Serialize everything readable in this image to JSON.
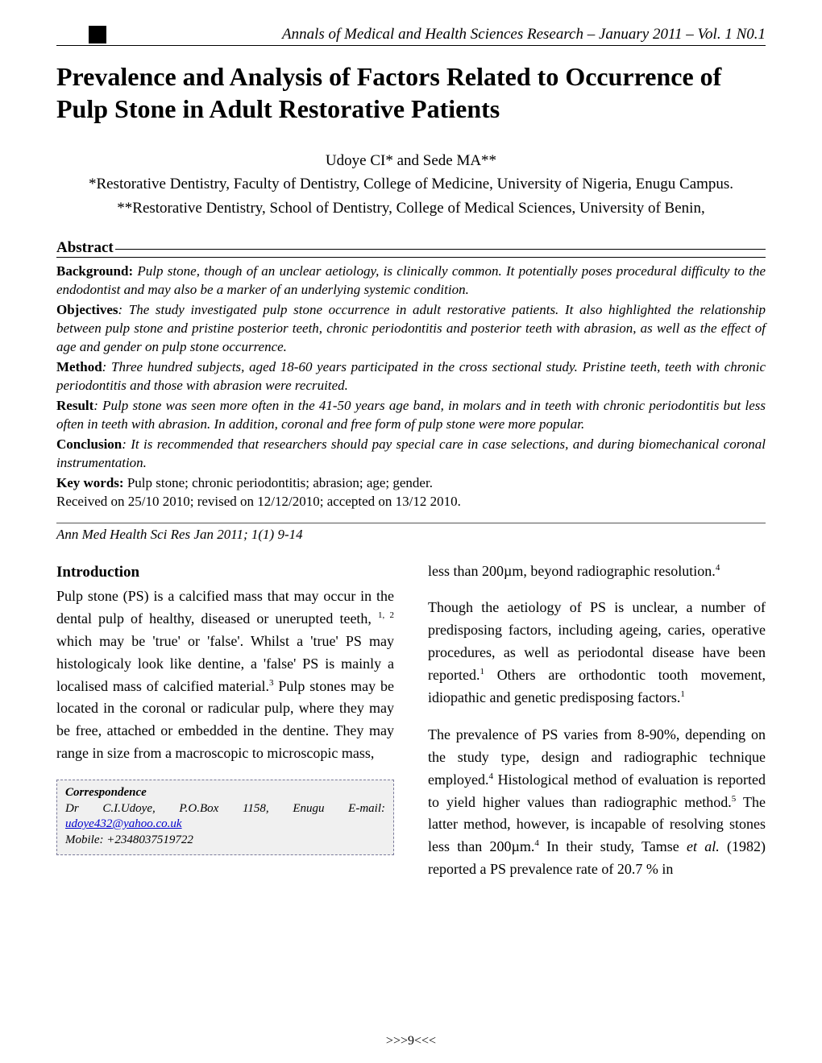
{
  "journal_header": "Annals of Medical and Health Sciences Research – January 2011 – Vol. 1 N0.1",
  "title": "Prevalence and Analysis of Factors Related to Occurrence of Pulp Stone in Adult Restorative Patients",
  "authors": "Udoye CI* and Sede MA**",
  "affiliation1": "*Restorative Dentistry, Faculty of Dentistry, College of Medicine, University of Nigeria, Enugu Campus.",
  "affiliation2": "**Restorative Dentistry, School of Dentistry, College of Medical Sciences, University of Benin,",
  "abstract_heading": "Abstract",
  "abstract": {
    "background_label": "Background:",
    "background": "Pulp stone, though of an unclear aetiology, is clinically common. It potentially poses procedural difficulty to the endodontist and may also be a marker of an underlying systemic condition.",
    "objectives_label": "Objectives",
    "objectives": ": The study investigated pulp stone occurrence in adult restorative patients. It also highlighted the relationship between pulp stone and pristine posterior teeth, chronic periodontitis and posterior teeth with abrasion, as well as the effect of age and gender on pulp stone occurrence.",
    "method_label": "Method",
    "method": ": Three hundred subjects, aged 18-60 years participated in the cross sectional study. Pristine teeth, teeth with chronic periodontitis and those with abrasion were recruited.",
    "result_label": "Result",
    "result": ": Pulp stone was seen more often in the 41-50 years age band, in molars and in teeth with chronic periodontitis but less often in teeth with abrasion. In addition, coronal and free form of pulp stone were more popular.",
    "conclusion_label": "Conclusion",
    "conclusion": ": It is recommended that researchers should pay special care in case selections, and during biomechanical coronal instrumentation."
  },
  "keywords_label": "Key words:",
  "keywords": " Pulp stone; chronic periodontitis; abrasion; age; gender.",
  "received": "Received on 25/10 2010; revised on 12/12/2010; accepted on 13/12 2010.",
  "citation": "Ann Med Health Sci Res Jan 2011; 1(1) 9-14",
  "intro_heading": "Introduction",
  "body": {
    "p1a": "Pulp stone (PS) is a calcified mass that may occur in the dental pulp of healthy, diseased or unerupted teeth, ",
    "p1_sup1": "1, 2",
    "p1b": " which may be 'true' or 'false'. Whilst a 'true' PS may histologicaly look like dentine, a 'false' PS is mainly a localised mass of calcified material.",
    "p1_sup2": "3",
    "p1c": " Pulp stones may be located in the coronal or radicular pulp, where they may be free, attached or embedded in the dentine. They may range in size from a macroscopic to microscopic mass,",
    "p2a": "less than 200µm, beyond radiographic resolution.",
    "p2_sup": "4",
    "p3a": "Though the aetiology of PS is unclear, a number of predisposing factors, including ageing, caries, operative procedures, as well as periodontal disease have been reported.",
    "p3_sup1": "1",
    "p3b": " Others are orthodontic tooth movement, idiopathic and genetic predisposing factors.",
    "p3_sup2": "1",
    "p4a": "The prevalence of PS varies from 8-90%, depending on the study type, design and radiographic technique employed.",
    "p4_sup1": "4",
    "p4b": " Histological method of evaluation is reported to yield higher values than radiographic method.",
    "p4_sup2": "5",
    "p4c": " The latter method, however, is incapable of resolving stones less than 200µm.",
    "p4_sup3": "4",
    "p4d": " In their study, Tamse ",
    "p4_etal": "et al.",
    "p4e": " (1982)  reported a PS prevalence rate of 20.7 % in"
  },
  "correspondence": {
    "title": "Correspondence",
    "line1a": "Dr C.I.Udoye, P.O.Box 1158, Enugu E-mail: ",
    "email": "udoye432@yahoo.co.uk",
    "line2": "Mobile: +2348037519722"
  },
  "page_number": ">>>9<<<",
  "colors": {
    "text": "#000000",
    "background": "#ffffff",
    "box_bg": "#f0f0f0",
    "box_border": "#7a7a9a",
    "link": "#0000cc"
  },
  "typography": {
    "body_font": "Times New Roman",
    "title_size_pt": 24,
    "body_size_pt": 13,
    "header_italic": true
  }
}
